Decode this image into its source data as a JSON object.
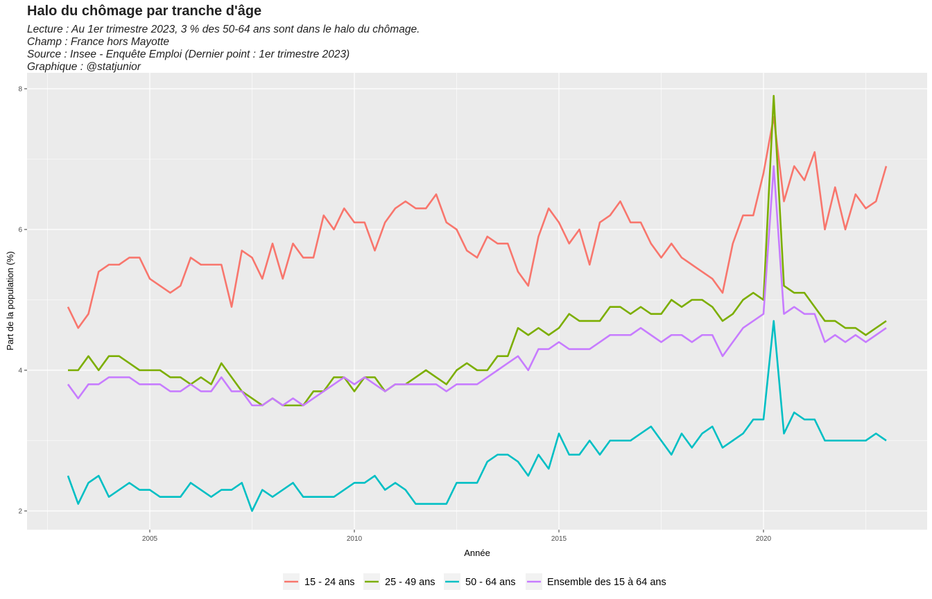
{
  "chart_data": {
    "type": "line",
    "title": "Halo du chômage par tranche d'âge",
    "subtitle_lines": [
      "Lecture : Au 1er trimestre 2023, 3 % des 50-64 ans sont dans le halo du chômage.",
      "Champ : France hors Mayotte",
      "Source : Insee - Enquête Emploi (Dernier point : 1er trimestre 2023)",
      "Graphique : @statjunior"
    ],
    "xlabel": "Année",
    "ylabel": "Part de la population (%)",
    "xlim": [
      2002.5,
      2025.0
    ],
    "ylim": [
      1.7,
      8.2
    ],
    "x_ticks": [
      2005,
      2010,
      2015,
      2020
    ],
    "y_ticks": [
      2,
      4,
      6,
      8
    ],
    "grid": true,
    "legend_position": "bottom",
    "x_start": 2003.0,
    "x_step": 0.25,
    "series": [
      {
        "name": "15 - 24 ans",
        "color": "#F8766D",
        "values": [
          4.9,
          4.6,
          4.8,
          5.4,
          5.5,
          5.5,
          5.6,
          5.6,
          5.3,
          5.2,
          5.1,
          5.2,
          5.6,
          5.5,
          5.5,
          5.5,
          4.9,
          5.7,
          5.6,
          5.3,
          5.8,
          5.3,
          5.8,
          5.6,
          5.6,
          6.2,
          6.0,
          6.3,
          6.1,
          6.1,
          5.7,
          6.1,
          6.3,
          6.4,
          6.3,
          6.3,
          6.5,
          6.1,
          6.0,
          5.7,
          5.6,
          5.9,
          5.8,
          5.8,
          5.4,
          5.2,
          5.9,
          6.3,
          6.1,
          5.8,
          6.0,
          5.5,
          6.1,
          6.2,
          6.4,
          6.1,
          6.1,
          5.8,
          5.6,
          5.8,
          5.6,
          5.5,
          5.4,
          5.3,
          5.1,
          5.8,
          6.2,
          6.2,
          6.8,
          7.6,
          6.4,
          6.9,
          6.7,
          7.1,
          6.0,
          6.6,
          6.0,
          6.5,
          6.3,
          6.4,
          6.9
        ]
      },
      {
        "name": "25 - 49 ans",
        "color": "#7CAE00",
        "values": [
          4.0,
          4.0,
          4.2,
          4.0,
          4.2,
          4.2,
          4.1,
          4.0,
          4.0,
          4.0,
          3.9,
          3.9,
          3.8,
          3.9,
          3.8,
          4.1,
          3.9,
          3.7,
          3.6,
          3.5,
          3.6,
          3.5,
          3.5,
          3.5,
          3.7,
          3.7,
          3.9,
          3.9,
          3.7,
          3.9,
          3.9,
          3.7,
          3.8,
          3.8,
          3.9,
          4.0,
          3.9,
          3.8,
          4.0,
          4.1,
          4.0,
          4.0,
          4.2,
          4.2,
          4.6,
          4.5,
          4.6,
          4.5,
          4.6,
          4.8,
          4.7,
          4.7,
          4.7,
          4.9,
          4.9,
          4.8,
          4.9,
          4.8,
          4.8,
          5.0,
          4.9,
          5.0,
          5.0,
          4.9,
          4.7,
          4.8,
          5.0,
          5.1,
          5.0,
          7.9,
          5.2,
          5.1,
          5.1,
          4.9,
          4.7,
          4.7,
          4.6,
          4.6,
          4.5,
          4.6,
          4.7
        ]
      },
      {
        "name": "50 - 64 ans",
        "color": "#00BFC4",
        "values": [
          2.5,
          2.1,
          2.4,
          2.5,
          2.2,
          2.3,
          2.4,
          2.3,
          2.3,
          2.2,
          2.2,
          2.2,
          2.4,
          2.3,
          2.2,
          2.3,
          2.3,
          2.4,
          2.0,
          2.3,
          2.2,
          2.3,
          2.4,
          2.2,
          2.2,
          2.2,
          2.2,
          2.3,
          2.4,
          2.4,
          2.5,
          2.3,
          2.4,
          2.3,
          2.1,
          2.1,
          2.1,
          2.1,
          2.4,
          2.4,
          2.4,
          2.7,
          2.8,
          2.8,
          2.7,
          2.5,
          2.8,
          2.6,
          3.1,
          2.8,
          2.8,
          3.0,
          2.8,
          3.0,
          3.0,
          3.0,
          3.1,
          3.2,
          3.0,
          2.8,
          3.1,
          2.9,
          3.1,
          3.2,
          2.9,
          3.0,
          3.1,
          3.3,
          3.3,
          4.7,
          3.1,
          3.4,
          3.3,
          3.3,
          3.0,
          3.0,
          3.0,
          3.0,
          3.0,
          3.1,
          3.0
        ]
      },
      {
        "name": "Ensemble des 15 à 64 ans",
        "color": "#C77CFF",
        "values": [
          3.8,
          3.6,
          3.8,
          3.8,
          3.9,
          3.9,
          3.9,
          3.8,
          3.8,
          3.8,
          3.7,
          3.7,
          3.8,
          3.7,
          3.7,
          3.9,
          3.7,
          3.7,
          3.5,
          3.5,
          3.6,
          3.5,
          3.6,
          3.5,
          3.6,
          3.7,
          3.8,
          3.9,
          3.8,
          3.9,
          3.8,
          3.7,
          3.8,
          3.8,
          3.8,
          3.8,
          3.8,
          3.7,
          3.8,
          3.8,
          3.8,
          3.9,
          4.0,
          4.1,
          4.2,
          4.0,
          4.3,
          4.3,
          4.4,
          4.3,
          4.3,
          4.3,
          4.4,
          4.5,
          4.5,
          4.5,
          4.6,
          4.5,
          4.4,
          4.5,
          4.5,
          4.4,
          4.5,
          4.5,
          4.2,
          4.4,
          4.6,
          4.7,
          4.8,
          6.9,
          4.8,
          4.9,
          4.8,
          4.8,
          4.4,
          4.5,
          4.4,
          4.5,
          4.4,
          4.5,
          4.6
        ]
      }
    ]
  }
}
